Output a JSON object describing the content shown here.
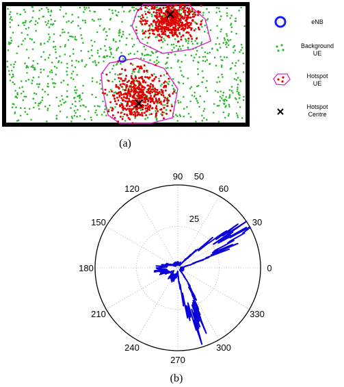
{
  "figure_a": {
    "caption": "(a)",
    "legend": {
      "enb": "eNB",
      "background_ue": [
        "Background",
        "UE"
      ],
      "hotspot_ue": [
        "Hotspot",
        "UE"
      ],
      "hotspot_centre": [
        "Hotspot",
        "Centre"
      ]
    },
    "colors": {
      "frame": "#000000",
      "background_ue": "#2eb82e",
      "hotspot_ue": "#e00000",
      "hull": "#e020c8",
      "enb": "#1a1aff"
    },
    "counts": {
      "background_ue": 950,
      "hotspot_ue_per_cluster": 500
    }
  },
  "figure_b": {
    "caption": "(b)",
    "angle_labels": [
      "0",
      "30",
      "60",
      "90",
      "120",
      "150",
      "180",
      "210",
      "240",
      "270",
      "300",
      "330"
    ],
    "radial_labels": [
      "25",
      "50"
    ],
    "colors": {
      "trace": "#0a00d8",
      "grid": "#bdbdbd",
      "axis": "#000000"
    },
    "chart_data": {
      "type": "polar-line",
      "r_ticks": [
        25,
        50
      ],
      "r_max": 50,
      "lobes": [
        {
          "angle_deg": 30,
          "r": 50
        },
        {
          "angle_deg": 290,
          "r": 42
        },
        {
          "angle_deg": 185,
          "r": 12
        },
        {
          "angle_deg": 240,
          "r": 8
        }
      ]
    }
  }
}
